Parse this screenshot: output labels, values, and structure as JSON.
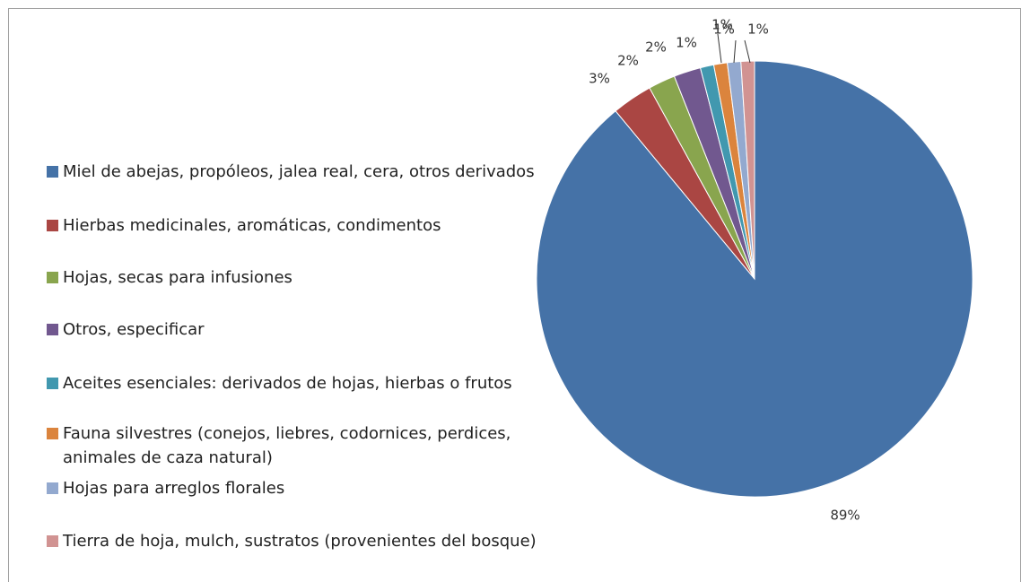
{
  "chart_data": {
    "type": "pie",
    "categories": [
      "Miel de abejas, propóleos, jalea real, cera, otros derivados",
      "Hierbas medicinales, aromáticas, condimentos",
      "Hojas, secas para infusiones",
      "Otros, especificar",
      "Aceites esenciales: derivados de hojas, hierbas o frutos",
      "Fauna silvestres (conejos, liebres, codornices, perdices, animales de caza natural)",
      "Hojas para arreglos florales",
      "Tierra de hoja, mulch, sustratos (provenientes del bosque)"
    ],
    "values": [
      89,
      3,
      2,
      2,
      1,
      1,
      1,
      1
    ],
    "value_labels": [
      "89%",
      "3%",
      "2%",
      "2%",
      "1%",
      "1%",
      "1%",
      "1%"
    ],
    "colors": [
      "#4572a7",
      "#aa4643",
      "#89a54e",
      "#71588f",
      "#4198af",
      "#db843d",
      "#93a9cf",
      "#d19392"
    ],
    "legend": "left"
  }
}
